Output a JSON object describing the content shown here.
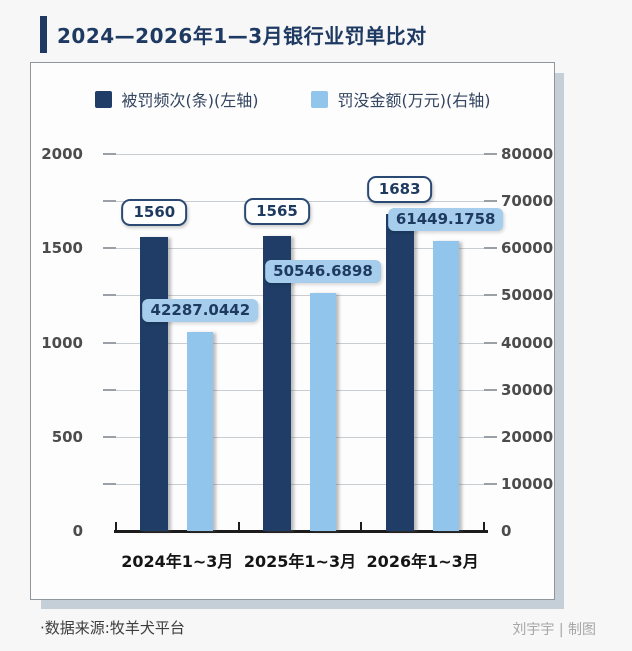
{
  "title": {
    "text": "2024—2026年1—3月银行业罚单比对",
    "accent_color": "#1e3a63"
  },
  "footer": {
    "source": "·数据来源:牧羊犬平台",
    "credit": "刘宇宇 | 制图"
  },
  "colors": {
    "navy": "#1f3d66",
    "light_blue": "#92c5ec",
    "card_shadow": "#c4cfd7",
    "gridline": "#c8cdd2",
    "axis_text": "#4c4c4c"
  },
  "chart_data": {
    "type": "bar",
    "title": "2024—2026年1—3月银行业罚单比对",
    "categories": [
      "2024年1~3月",
      "2025年1~3月",
      "2026年1~3月"
    ],
    "series": [
      {
        "name": "被罚频次(条)(左轴)",
        "axis": "left",
        "color": "#1f3d66",
        "values": [
          1560,
          1565,
          1683
        ],
        "value_labels": [
          "1560",
          "1565",
          "1683"
        ],
        "label_style": {
          "bg": "#ffffff",
          "border": "#2a4a73",
          "text": "#1e3a5f",
          "kind": "boxed"
        }
      },
      {
        "name": "罚没金额(万元)(右轴)",
        "axis": "right",
        "color": "#92c5ec",
        "values": [
          42287.0442,
          50546.6898,
          61449.1758
        ],
        "value_labels": [
          "42287.0442",
          "50546.6898",
          "61449.1758"
        ],
        "label_style": {
          "bg": "#a6cdeb",
          "border": "none",
          "text": "#1e3a5f",
          "kind": "pill"
        }
      }
    ],
    "left_axis": {
      "min": 0,
      "max": 2000,
      "grid_step": 250,
      "labels": [
        0,
        500,
        1000,
        1500,
        2000
      ]
    },
    "right_axis": {
      "min": 0,
      "max": 80000,
      "grid_step": 10000,
      "labels": [
        0,
        10000,
        20000,
        30000,
        40000,
        50000,
        60000,
        70000,
        80000
      ]
    },
    "grid": true,
    "legend_position": "top"
  }
}
